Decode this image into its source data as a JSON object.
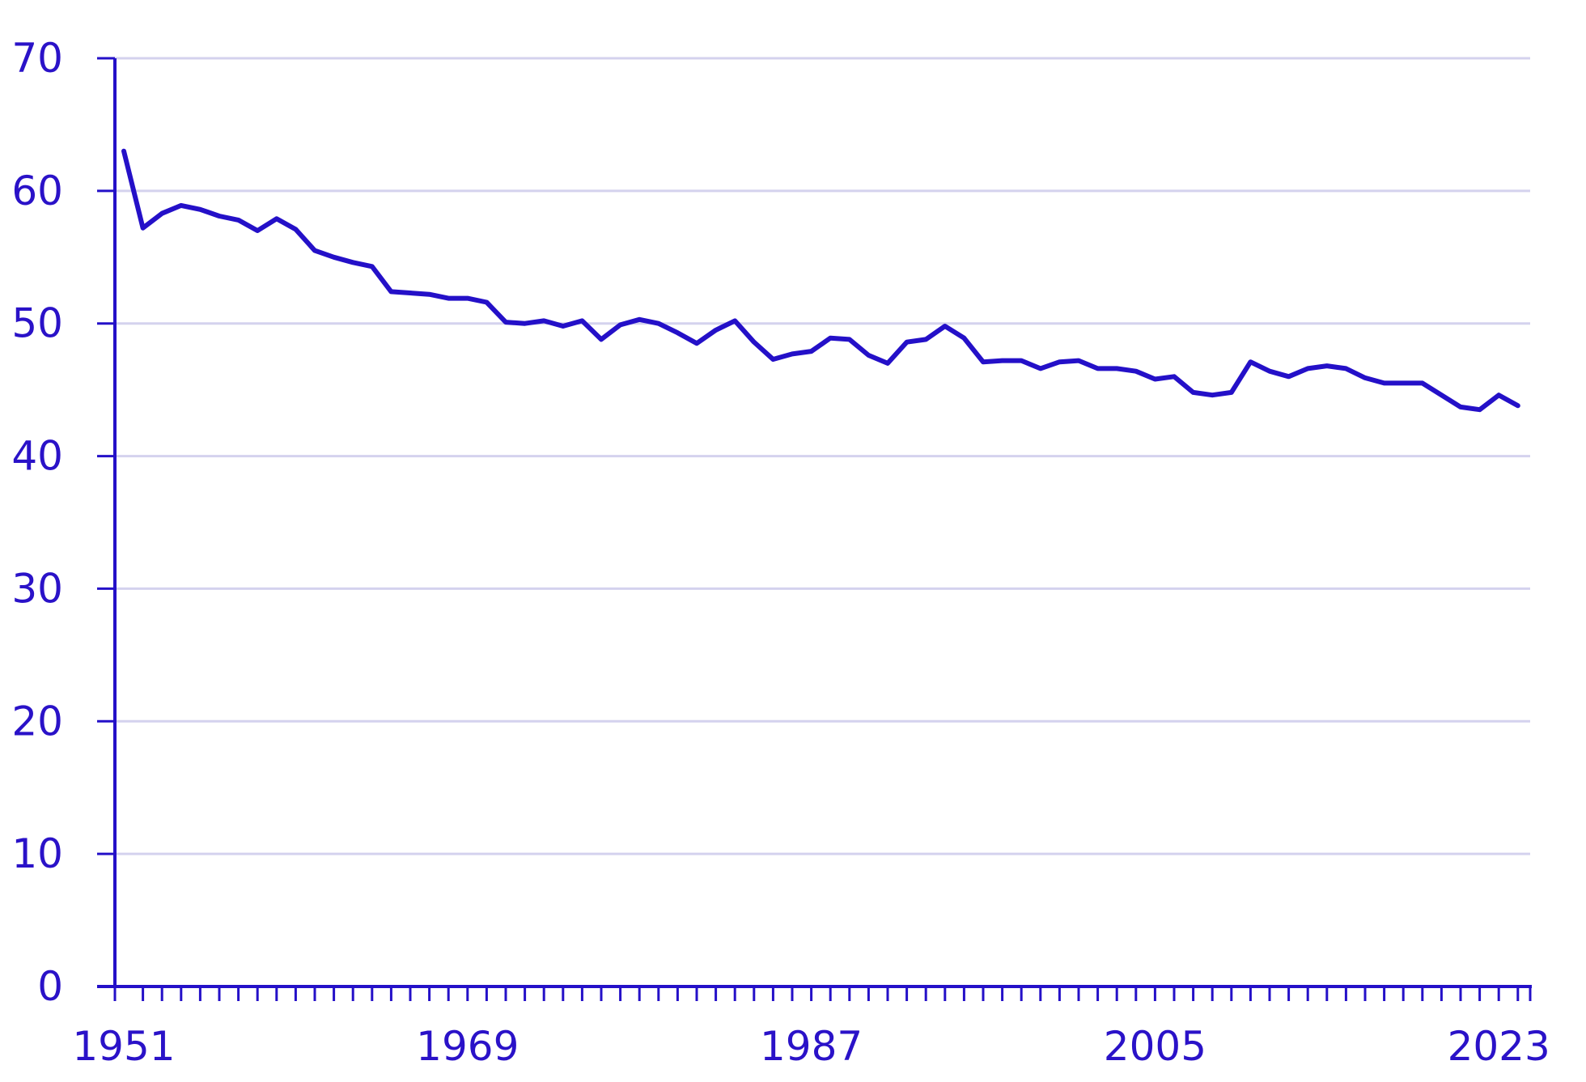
{
  "chart_data": {
    "type": "line",
    "title": "",
    "xlabel": "",
    "ylabel": "",
    "xlim": [
      1951,
      2024
    ],
    "ylim": [
      0,
      70
    ],
    "y_ticks": [
      0,
      10,
      20,
      30,
      40,
      50,
      60,
      70
    ],
    "x_tick_labels": [
      "1951",
      "1969",
      "1987",
      "2005",
      "2023"
    ],
    "grid": "horizontal",
    "colors": {
      "line": "#2410c8",
      "axis": "#2410c8",
      "grid": "#d4d2ee",
      "text": "#2a12c8"
    },
    "series": [
      {
        "x": [
          1951,
          1952,
          1953,
          1954,
          1955,
          1956,
          1957,
          1958,
          1959,
          1960,
          1961,
          1962,
          1963,
          1964,
          1965,
          1966,
          1967,
          1968,
          1969,
          1970,
          1971,
          1972,
          1973,
          1974,
          1975,
          1976,
          1977,
          1978,
          1979,
          1980,
          1981,
          1982,
          1983,
          1984,
          1985,
          1986,
          1987,
          1988,
          1989,
          1990,
          1991,
          1992,
          1993,
          1994,
          1995,
          1996,
          1997,
          1998,
          1999,
          2000,
          2001,
          2002,
          2003,
          2004,
          2005,
          2006,
          2007,
          2008,
          2009,
          2010,
          2011,
          2012,
          2013,
          2014,
          2015,
          2016,
          2017,
          2018,
          2019,
          2020,
          2021,
          2022,
          2023,
          2024
        ],
        "values": [
          63.0,
          57.2,
          58.3,
          58.9,
          58.6,
          58.1,
          57.8,
          57.0,
          57.9,
          57.1,
          55.5,
          55.0,
          54.6,
          54.3,
          52.4,
          52.3,
          52.2,
          51.9,
          51.9,
          51.6,
          50.1,
          50.0,
          50.2,
          49.8,
          50.2,
          48.8,
          49.9,
          50.3,
          50.0,
          49.3,
          48.5,
          49.5,
          50.2,
          48.6,
          47.3,
          47.7,
          47.9,
          48.9,
          48.8,
          47.6,
          47.0,
          48.6,
          48.8,
          49.8,
          48.9,
          47.1,
          47.2,
          47.2,
          46.6,
          47.1,
          47.2,
          46.6,
          46.6,
          46.4,
          45.8,
          46.0,
          44.8,
          44.6,
          44.8,
          47.1,
          46.4,
          46.0,
          46.6,
          46.8,
          46.6,
          45.9,
          45.5,
          45.5,
          45.5,
          44.6,
          43.7,
          43.5,
          44.6,
          43.8
        ]
      }
    ]
  }
}
